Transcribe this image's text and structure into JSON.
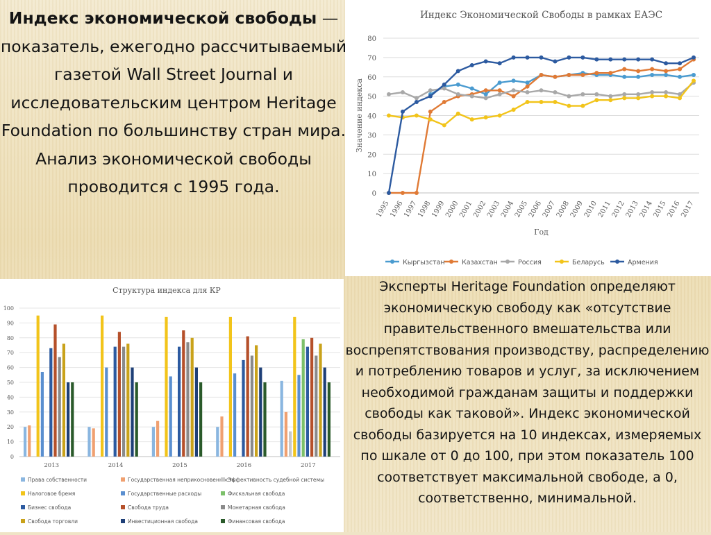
{
  "slide": {
    "intro_bold": "Индекс экономической свободы",
    "intro_rest": " — показатель, ежегодно рассчитываемый газетой Wall Street Journal и исследовательским центром Heritage Foundation по большинству стран мира. Анализ экономической свободы проводится с 1995 года.",
    "expert_text": "Эксперты Heritage Foundation определяют экономическую свободу как «отсутствие правительственного вмешательства или воспрепятствования производству, распределению и потреблению товаров и услуг, за исключением необходимой гражданам защиты и поддержки свободы как таковой». Индекс экономической свободы базируется на 10 индексах, измеряемых по шкале от 0 до 100, при этом показатель 100 соответствует максимальной свободе, а 0, соответственно, минимальной."
  },
  "chart_data": [
    {
      "type": "line",
      "title": "Индекс Экономической Свободы в рамках ЕАЭС",
      "xlabel": "Год",
      "ylabel": "Значение индекса",
      "ylim": [
        0,
        80
      ],
      "yticks": [
        0,
        10,
        20,
        30,
        40,
        50,
        60,
        70,
        80
      ],
      "grid": true,
      "legend_position": "bottom",
      "x": [
        "1995",
        "1996",
        "1997",
        "1998",
        "1999",
        "2000",
        "2001",
        "2002",
        "2003",
        "2004",
        "2005",
        "2006",
        "2007",
        "2008",
        "2009",
        "2010",
        "2011",
        "2012",
        "2013",
        "2014",
        "2015",
        "2016",
        "2017"
      ],
      "series": [
        {
          "name": "Кыргызстан",
          "color": "#4a9bd0",
          "values": [
            null,
            null,
            null,
            51,
            55,
            56,
            54,
            51,
            57,
            58,
            57,
            61,
            60,
            61,
            62,
            61,
            61,
            60,
            60,
            61,
            61,
            60,
            61
          ]
        },
        {
          "name": "Казахстан",
          "color": "#e07a35",
          "values": [
            0,
            0,
            0,
            42,
            47,
            50,
            51,
            53,
            53,
            50,
            55,
            61,
            60,
            61,
            61,
            62,
            62,
            64,
            63,
            64,
            63,
            64,
            69
          ]
        },
        {
          "name": "Россия",
          "color": "#a8a8a8",
          "values": [
            51,
            52,
            49,
            53,
            54,
            51,
            50,
            49,
            51,
            53,
            52,
            53,
            52,
            50,
            51,
            51,
            50,
            51,
            51,
            52,
            52,
            51,
            57
          ]
        },
        {
          "name": "Беларусь",
          "color": "#f2c41a",
          "values": [
            40,
            39,
            40,
            38,
            35,
            41,
            38,
            39,
            40,
            43,
            47,
            47,
            47,
            45,
            45,
            48,
            48,
            49,
            49,
            50,
            50,
            49,
            58
          ]
        },
        {
          "name": "Армения",
          "color": "#2c5aa0",
          "values": [
            0,
            42,
            47,
            50,
            56,
            63,
            66,
            68,
            67,
            70,
            70,
            70,
            68,
            70,
            70,
            69,
            69,
            69,
            69,
            69,
            67,
            67,
            70
          ]
        }
      ]
    },
    {
      "type": "bar",
      "title": "Структура индекса для КР",
      "ylim": [
        0,
        100
      ],
      "yticks": [
        0,
        10,
        20,
        30,
        40,
        50,
        60,
        70,
        80,
        90,
        100
      ],
      "legend_position": "bottom",
      "categories": [
        "2013",
        "2014",
        "2015",
        "2016",
        "2017"
      ],
      "series": [
        {
          "name": "Права собственности",
          "color": "#8ab6e0",
          "values": [
            20,
            20,
            20,
            20,
            51
          ]
        },
        {
          "name": "Государственная неприкосновенность",
          "color": "#f0a070",
          "values": [
            21,
            19,
            24,
            27,
            30
          ]
        },
        {
          "name": "Эффективность судебной системы",
          "color": "#c8c8c8",
          "values": [
            null,
            null,
            null,
            null,
            17
          ]
        },
        {
          "name": "Налоговое бремя",
          "color": "#f2c41a",
          "values": [
            95,
            95,
            94,
            94,
            94
          ]
        },
        {
          "name": "Государственные расходы",
          "color": "#5a8fd0",
          "values": [
            57,
            60,
            54,
            56,
            55
          ]
        },
        {
          "name": "Фискальная свобода",
          "color": "#7cc06a",
          "values": [
            null,
            null,
            null,
            null,
            79
          ]
        },
        {
          "name": "Бизнес свобода",
          "color": "#2c5aa0",
          "values": [
            73,
            74,
            74,
            65,
            74
          ]
        },
        {
          "name": "Свобода труда",
          "color": "#b5502a",
          "values": [
            89,
            84,
            85,
            81,
            80
          ]
        },
        {
          "name": "Монетарная свобода",
          "color": "#8a8a8a",
          "values": [
            67,
            74,
            77,
            68,
            68
          ]
        },
        {
          "name": "Свобода торговли",
          "color": "#c9a21a",
          "values": [
            76,
            76,
            80,
            75,
            76
          ]
        },
        {
          "name": "Инвестиционная свобода",
          "color": "#1e3f77",
          "values": [
            50,
            60,
            60,
            60,
            60
          ]
        },
        {
          "name": "Финансовая свобода",
          "color": "#2a5a2a",
          "values": [
            50,
            50,
            50,
            50,
            50
          ]
        }
      ]
    }
  ]
}
